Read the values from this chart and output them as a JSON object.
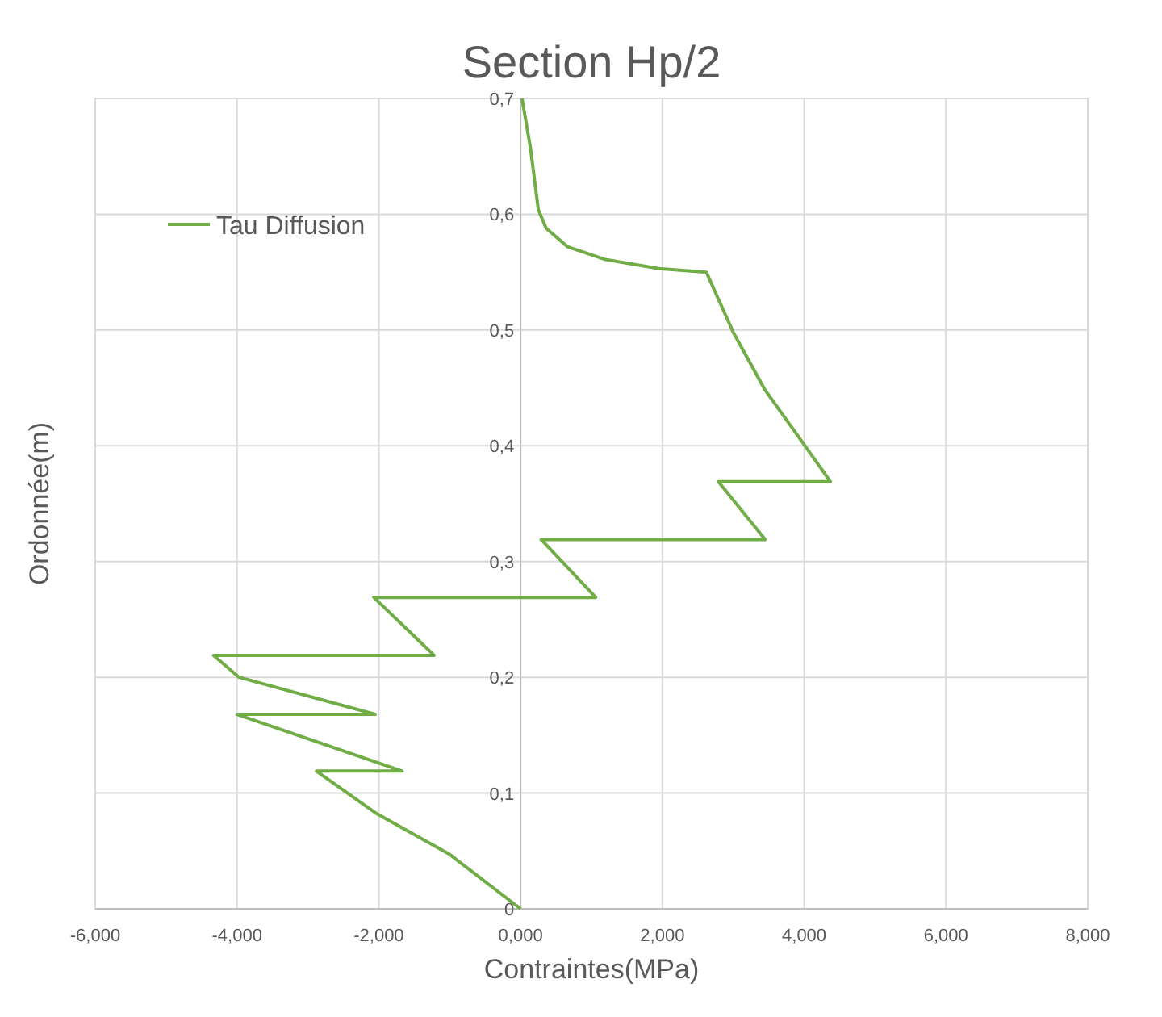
{
  "chart_data": {
    "type": "line",
    "title": "Section Hp/2",
    "xlabel": "Contraintes(MPa)",
    "ylabel": "Ordonnée(m)",
    "series": [
      {
        "name": "Tau Diffusion",
        "color": "#70ad47",
        "x": [
          0,
          -1.0,
          -2.05,
          -2.88,
          -1.67,
          -4.0,
          -2.05,
          -3.97,
          -4.33,
          -1.22,
          -2.07,
          1.06,
          0.29,
          3.45,
          2.79,
          4.37,
          4.0,
          3.45,
          3.0,
          2.62,
          1.95,
          1.19,
          0.66,
          0.36,
          0.25,
          0.14,
          0.02
        ],
        "values": [
          0,
          0.047,
          0.083,
          0.119,
          0.119,
          0.168,
          0.168,
          0.2,
          0.219,
          0.219,
          0.269,
          0.269,
          0.319,
          0.319,
          0.369,
          0.369,
          0.401,
          0.448,
          0.498,
          0.55,
          0.553,
          0.561,
          0.572,
          0.588,
          0.604,
          0.657,
          0.7
        ]
      }
    ],
    "xlim": [
      -6,
      8
    ],
    "xticks": [
      {
        "value": -6,
        "label": "-6,000"
      },
      {
        "value": -4,
        "label": "-4,000"
      },
      {
        "value": -2,
        "label": "-2,000"
      },
      {
        "value": 0,
        "label": "0,000"
      },
      {
        "value": 2,
        "label": "2,000"
      },
      {
        "value": 4,
        "label": "4,000"
      },
      {
        "value": 6,
        "label": "6,000"
      },
      {
        "value": 8,
        "label": "8,000"
      }
    ],
    "ylim": [
      0,
      0.7
    ],
    "yticks": [
      0,
      {
        "value": 0.1,
        "label": "0,1"
      },
      {
        "value": 0.2,
        "label": "0,2"
      },
      {
        "value": 0.3,
        "label": "0,3"
      },
      {
        "value": 0.4,
        "label": "0,4"
      },
      {
        "value": 0.5,
        "label": "0,5"
      },
      {
        "value": 0.6,
        "label": "0,6"
      },
      {
        "value": 0.7,
        "label": "0,7"
      }
    ],
    "grid": true,
    "legend": "top left",
    "marker": "none",
    "line_style": "solid"
  }
}
